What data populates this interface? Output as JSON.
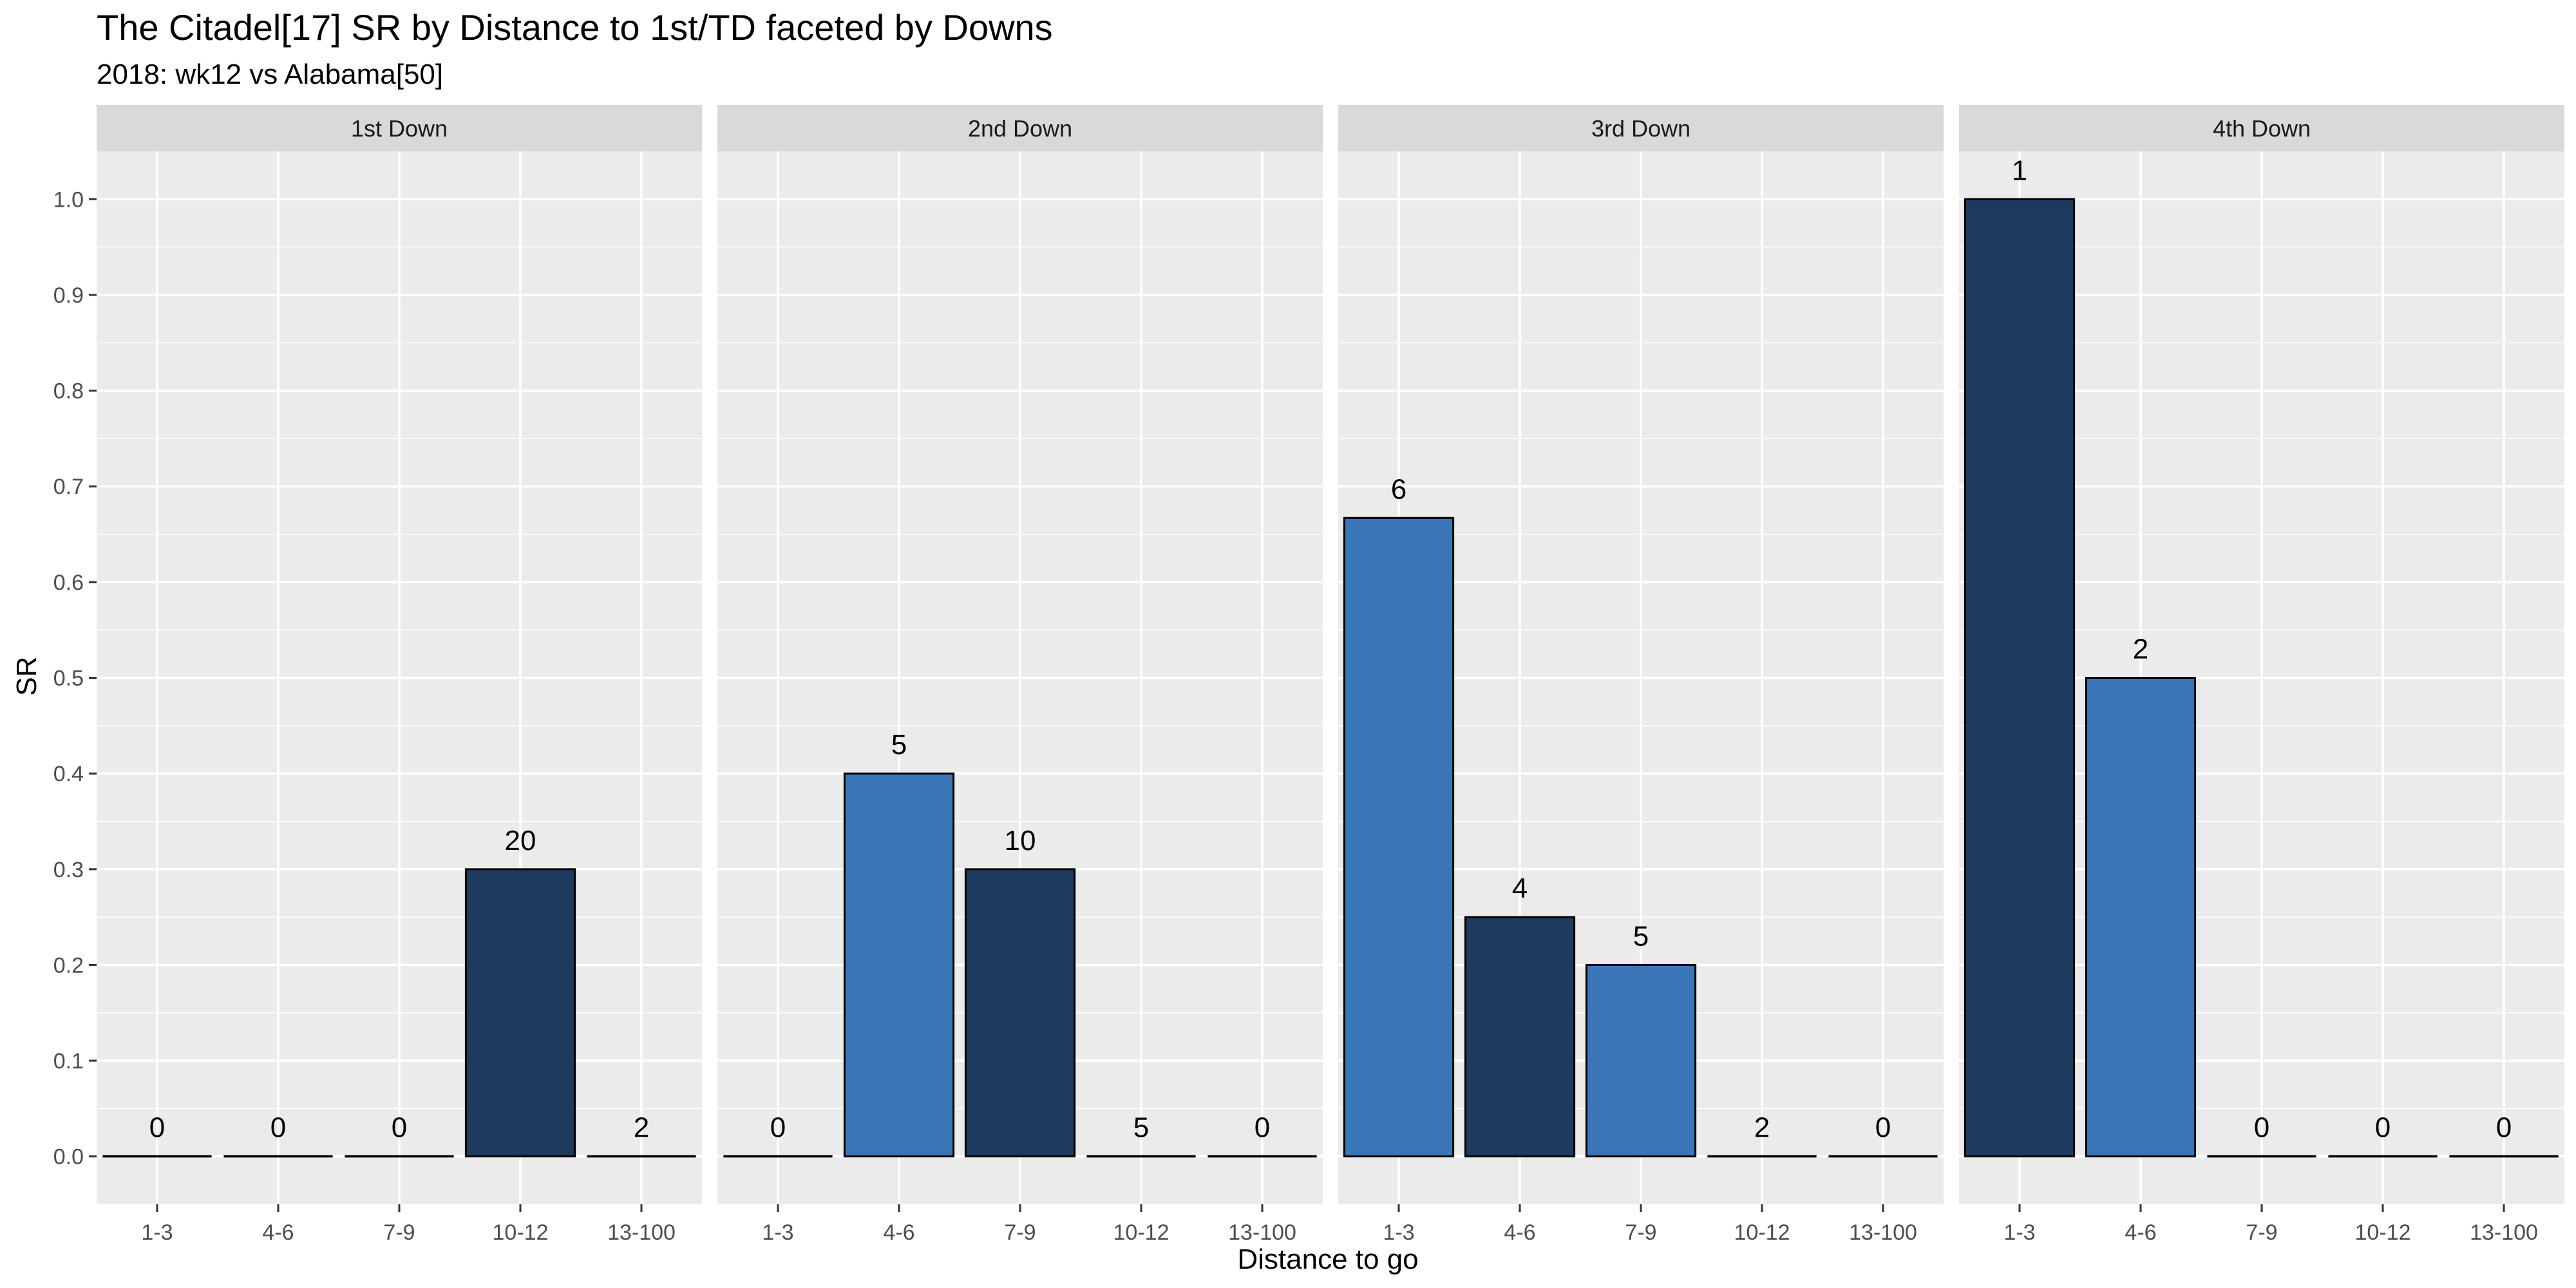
{
  "chart_data": {
    "type": "bar",
    "title": "The Citadel[17] SR by Distance to 1st/TD faceted by Downs",
    "subtitle": "2018: wk12 vs Alabama[50]",
    "xlabel": "Distance to go",
    "ylabel": "SR",
    "ylim": [
      -0.05,
      1.05
    ],
    "yticks": [
      "0.0",
      "0.1",
      "0.2",
      "0.3",
      "0.4",
      "0.5",
      "0.6",
      "0.7",
      "0.8",
      "0.9",
      "1.0"
    ],
    "categories": [
      "1-3",
      "4-6",
      "7-9",
      "10-12",
      "13-100"
    ],
    "grid": true,
    "colors": {
      "dark": "#1f3a5f",
      "light": "#3a75b8",
      "panel_bg": "#ebebeb",
      "strip_bg": "#d9d9d9",
      "grid": "#ffffff",
      "outline": "#000000"
    },
    "facets": [
      {
        "label": "1st Down",
        "values": [
          0,
          0,
          0,
          0.3,
          0
        ],
        "counts": [
          "0",
          "0",
          "0",
          "20",
          "2"
        ],
        "fill": [
          "dark",
          "dark",
          "dark",
          "dark",
          "dark"
        ]
      },
      {
        "label": "2nd Down",
        "values": [
          0,
          0.4,
          0.3,
          0,
          0
        ],
        "counts": [
          "0",
          "5",
          "10",
          "5",
          "0"
        ],
        "fill": [
          "dark",
          "light",
          "dark",
          "dark",
          "dark"
        ]
      },
      {
        "label": "3rd Down",
        "values": [
          0.667,
          0.25,
          0.2,
          0,
          0
        ],
        "counts": [
          "6",
          "4",
          "5",
          "2",
          "0"
        ],
        "fill": [
          "light",
          "dark",
          "light",
          "dark",
          "dark"
        ]
      },
      {
        "label": "4th Down",
        "values": [
          1.0,
          0.5,
          0,
          0,
          0
        ],
        "counts": [
          "1",
          "2",
          "0",
          "0",
          "0"
        ],
        "fill": [
          "dark",
          "light",
          "dark",
          "dark",
          "dark"
        ]
      }
    ]
  }
}
